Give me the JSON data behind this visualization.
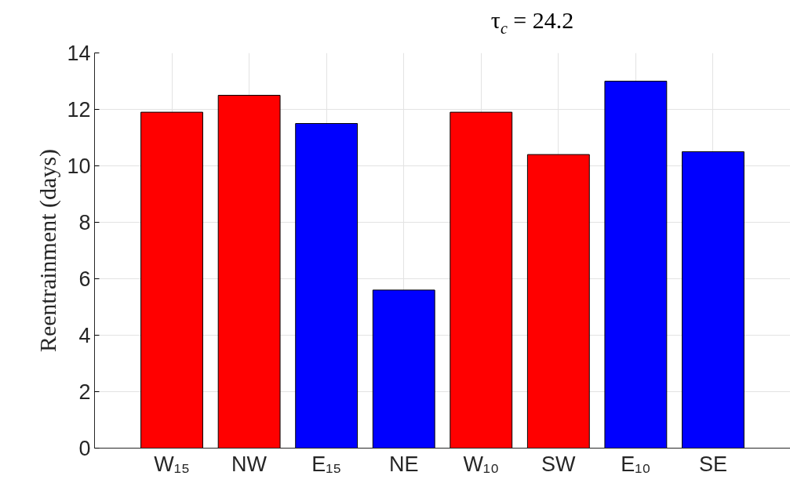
{
  "chart_data": {
    "type": "bar",
    "title": "τ$_{c}$ = 24.2",
    "ylabel": "Reentrainment (days)",
    "categories": [
      "W₁₅",
      "NW",
      "E₁₅",
      "NE",
      "W₁₀",
      "SW",
      "E₁₀",
      "SE"
    ],
    "values": [
      11.9,
      12.5,
      11.5,
      5.6,
      11.9,
      10.4,
      13.0,
      10.5
    ],
    "colors": [
      "#ff0000",
      "#ff0000",
      "#0000ff",
      "#0000ff",
      "#ff0000",
      "#ff0000",
      "#0000ff",
      "#0000ff"
    ],
    "ylim": [
      0,
      14
    ],
    "yticks": [
      0,
      2,
      4,
      6,
      8,
      10,
      12,
      14
    ],
    "grid": true
  }
}
